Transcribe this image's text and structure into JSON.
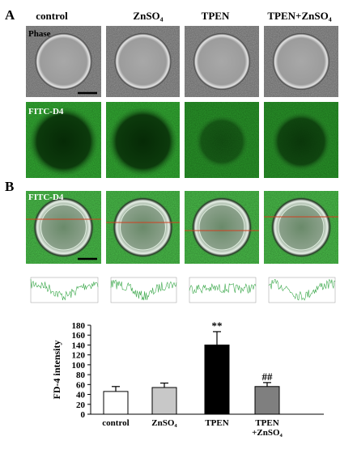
{
  "panel_a": {
    "label": "A",
    "columns": [
      "control",
      "ZnSO₄",
      "TPEN",
      "TPEN+ZnSO₄"
    ],
    "rows": [
      "Phase",
      "FITC-D4"
    ]
  },
  "panel_b": {
    "label": "B",
    "image_label": "FITC-D4"
  },
  "chart_data": {
    "type": "bar",
    "ylabel": "FD-4 intensity",
    "categories": [
      "control",
      "ZnSO₄",
      "TPEN",
      "TPEN +ZnSO₄"
    ],
    "values": [
      46,
      54,
      140,
      56
    ],
    "errors": [
      10,
      9,
      27,
      8
    ],
    "colors": [
      "#ffffff",
      "#c8c8c8",
      "#000000",
      "#7f7f7f"
    ],
    "annotations": [
      {
        "category": "TPEN",
        "text": "**"
      },
      {
        "category": "TPEN +ZnSO₄",
        "text": "##"
      }
    ],
    "ylim": [
      0,
      180
    ],
    "yticks": [
      0,
      20,
      40,
      60,
      80,
      100,
      120,
      140,
      160,
      180
    ]
  }
}
